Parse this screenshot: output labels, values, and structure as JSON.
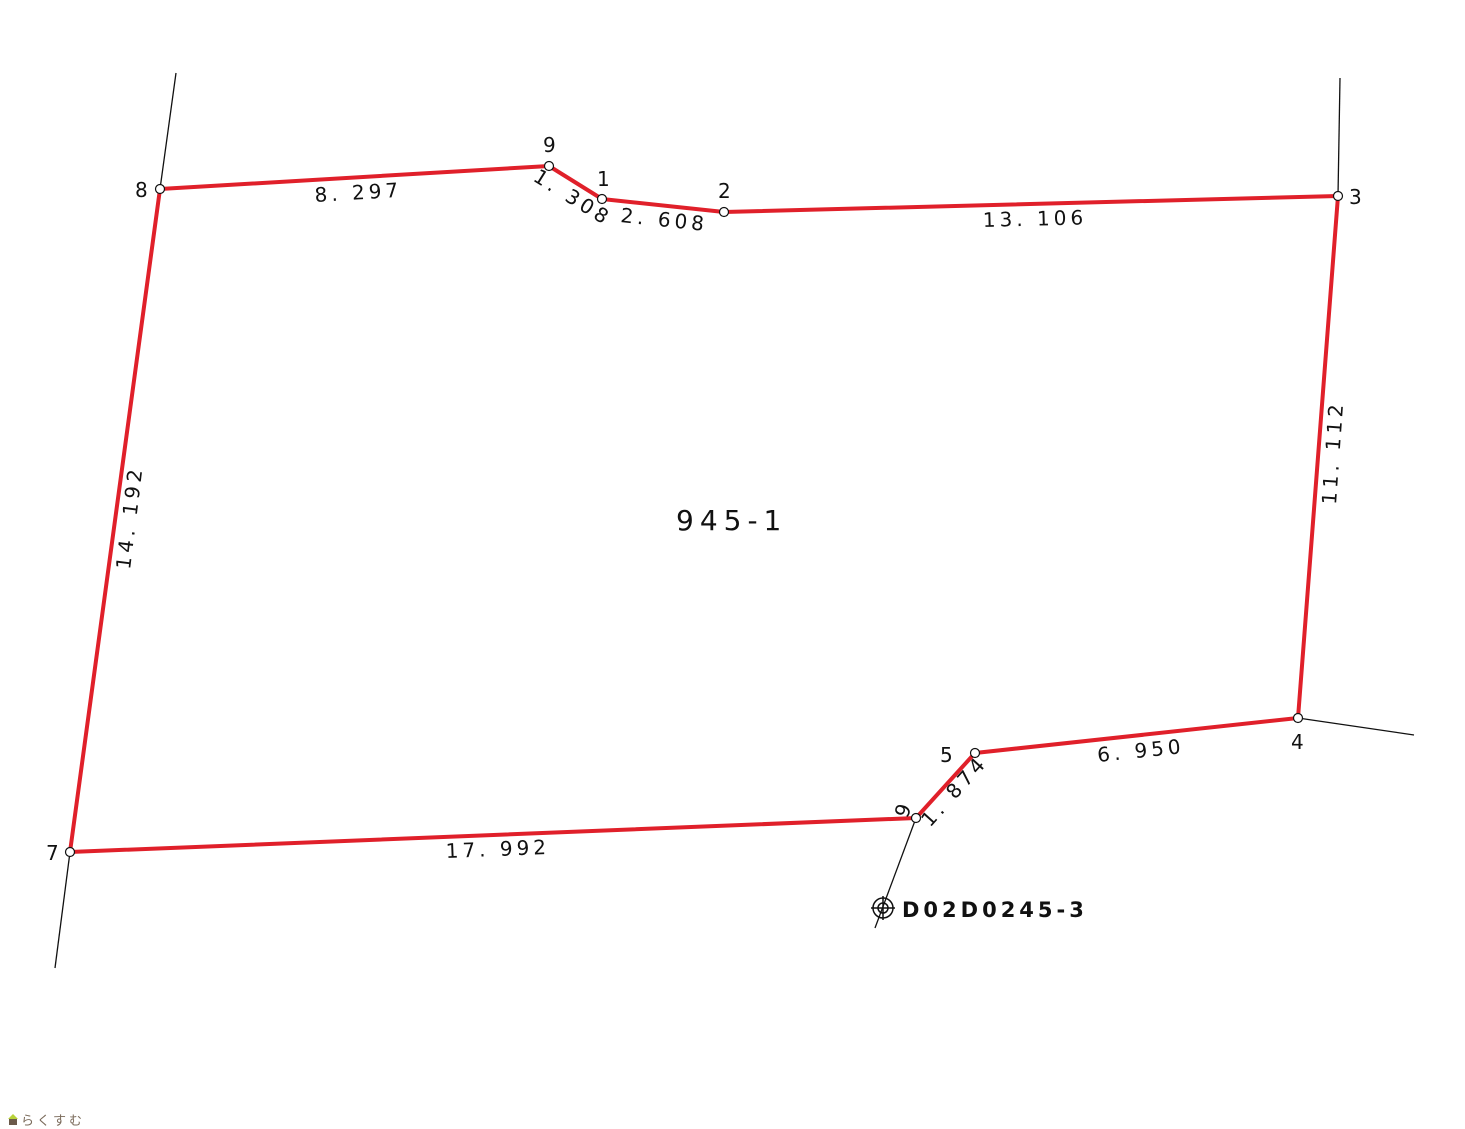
{
  "parcel_id": "945-1",
  "benchmark": "D02D0245-3",
  "boundary_color": "#e0202a",
  "points": [
    "1",
    "2",
    "3",
    "4",
    "5",
    "6",
    "7",
    "8",
    "9"
  ],
  "distances": {
    "d8_9": "8. 297",
    "d9_1": "1. 308",
    "d1_2": "2. 608",
    "d2_3": "13. 106",
    "d3_4": "11. 112",
    "d4_5": "6. 950",
    "d5_6": "1. 874",
    "d6_7": "17. 992",
    "d7_8": "14. 192"
  },
  "logo_text": "らくすむ"
}
